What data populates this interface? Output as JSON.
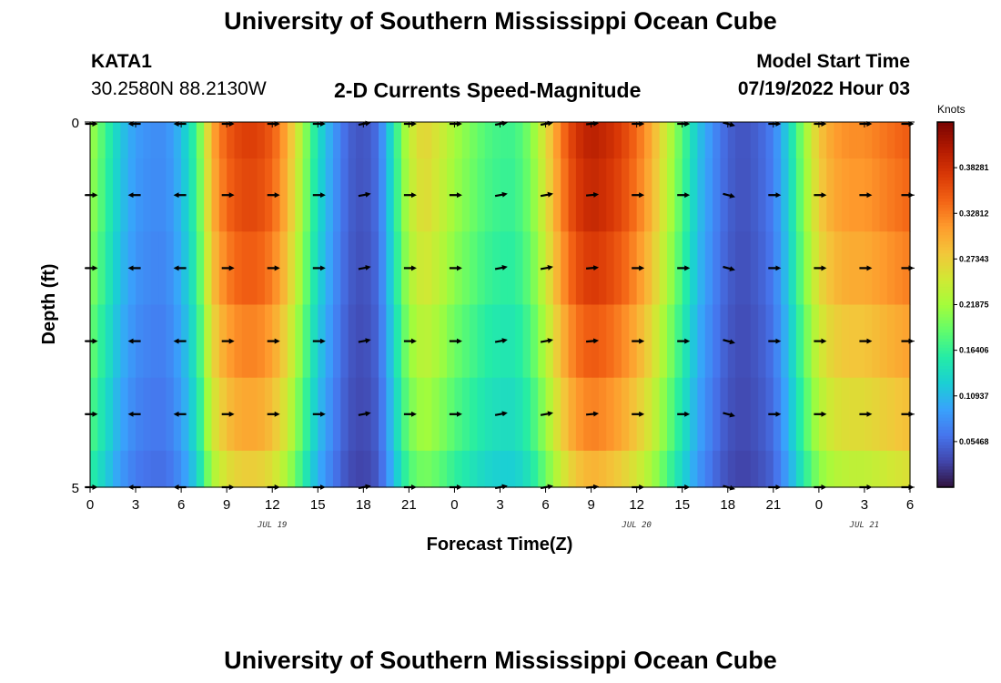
{
  "header": {
    "title": "University of Southern Mississippi Ocean Cube",
    "station": "KATA1",
    "coords": "30.2580N  88.2130W",
    "product": "2-D Currents Speed-Magnitude",
    "start_label": "Model Start Time",
    "start_value": "07/19/2022 Hour 03",
    "second_title": "University of Southern Mississippi Ocean Cube"
  },
  "chart_data": {
    "type": "heatmap",
    "title": "2-D Currents Speed-Magnitude",
    "xlabel": "Forecast Time(Z)",
    "ylabel": "Depth (ft)",
    "x_tick_labels": [
      "0",
      "3",
      "6",
      "9",
      "12",
      "15",
      "18",
      "21",
      "0",
      "3",
      "6",
      "9",
      "12",
      "15",
      "18",
      "21",
      "0",
      "3",
      "6"
    ],
    "x_range_hours": [
      0,
      54
    ],
    "date_labels": [
      {
        "text": "JUL 19",
        "hour": 12
      },
      {
        "text": "JUL 20",
        "hour": 36
      },
      {
        "text": "JUL 21",
        "hour": 51
      }
    ],
    "y_tick_labels": [
      "0",
      "5"
    ],
    "y_range_ft": [
      0,
      5
    ],
    "depth_levels_ft": [
      0,
      1,
      2,
      3,
      4,
      5
    ],
    "arrow_times_hours": [
      0,
      3,
      6,
      9,
      12,
      15,
      18,
      21,
      24,
      27,
      30,
      33,
      36,
      39,
      42,
      45,
      48,
      51,
      54
    ],
    "colorbar": {
      "unit": "Knots",
      "range": [
        0,
        0.4375
      ],
      "tick_labels": [
        "0.05468",
        "0.10937",
        "0.16406",
        "0.21875",
        "0.27343",
        "0.32812",
        "0.38281"
      ],
      "tick_values": [
        0.05468,
        0.10937,
        0.16406,
        0.21875,
        0.27343,
        0.32812,
        0.38281
      ],
      "color_stops": [
        "#30123b",
        "#4145ab",
        "#4675ed",
        "#39a2fc",
        "#1bcfd4",
        "#24eca6",
        "#61fc6c",
        "#a4fc3b",
        "#d1e834",
        "#f3c63a",
        "#fe9b2d",
        "#f36315",
        "#d93806",
        "#b11901",
        "#7a0402"
      ]
    },
    "speed_profile": {
      "hours": [
        0,
        1,
        2,
        3,
        4,
        5,
        6,
        7,
        7.5,
        8,
        9,
        10,
        11,
        12,
        13,
        14,
        15,
        16,
        17,
        18,
        19,
        20,
        21,
        22,
        23,
        24,
        25,
        26,
        27,
        28,
        29,
        30,
        31,
        32,
        33,
        34,
        35,
        36,
        37,
        38,
        39,
        40,
        41,
        42,
        43,
        44,
        45,
        46,
        47,
        48,
        49,
        50,
        51,
        52,
        53,
        54
      ],
      "speed_knots": [
        0.22,
        0.17,
        0.12,
        0.09,
        0.08,
        0.08,
        0.11,
        0.17,
        0.23,
        0.3,
        0.35,
        0.37,
        0.37,
        0.35,
        0.3,
        0.22,
        0.14,
        0.09,
        0.05,
        0.04,
        0.06,
        0.15,
        0.24,
        0.27,
        0.25,
        0.22,
        0.2,
        0.18,
        0.17,
        0.17,
        0.2,
        0.26,
        0.33,
        0.38,
        0.4,
        0.39,
        0.37,
        0.34,
        0.3,
        0.24,
        0.18,
        0.12,
        0.08,
        0.05,
        0.04,
        0.05,
        0.07,
        0.13,
        0.21,
        0.28,
        0.31,
        0.32,
        0.32,
        0.33,
        0.34,
        0.35
      ]
    },
    "depth_factor": [
      1.0,
      0.98,
      0.94,
      0.88,
      0.82,
      0.74
    ],
    "arrow_direction_profile": {
      "hours": [
        0,
        3,
        6,
        9,
        12,
        15,
        18,
        21,
        24,
        27,
        30,
        33,
        36,
        39,
        42,
        45,
        48,
        51,
        54
      ],
      "direction_deg": [
        0,
        180,
        180,
        0,
        0,
        0,
        10,
        0,
        0,
        10,
        10,
        5,
        0,
        0,
        -15,
        0,
        0,
        0,
        0
      ]
    }
  }
}
